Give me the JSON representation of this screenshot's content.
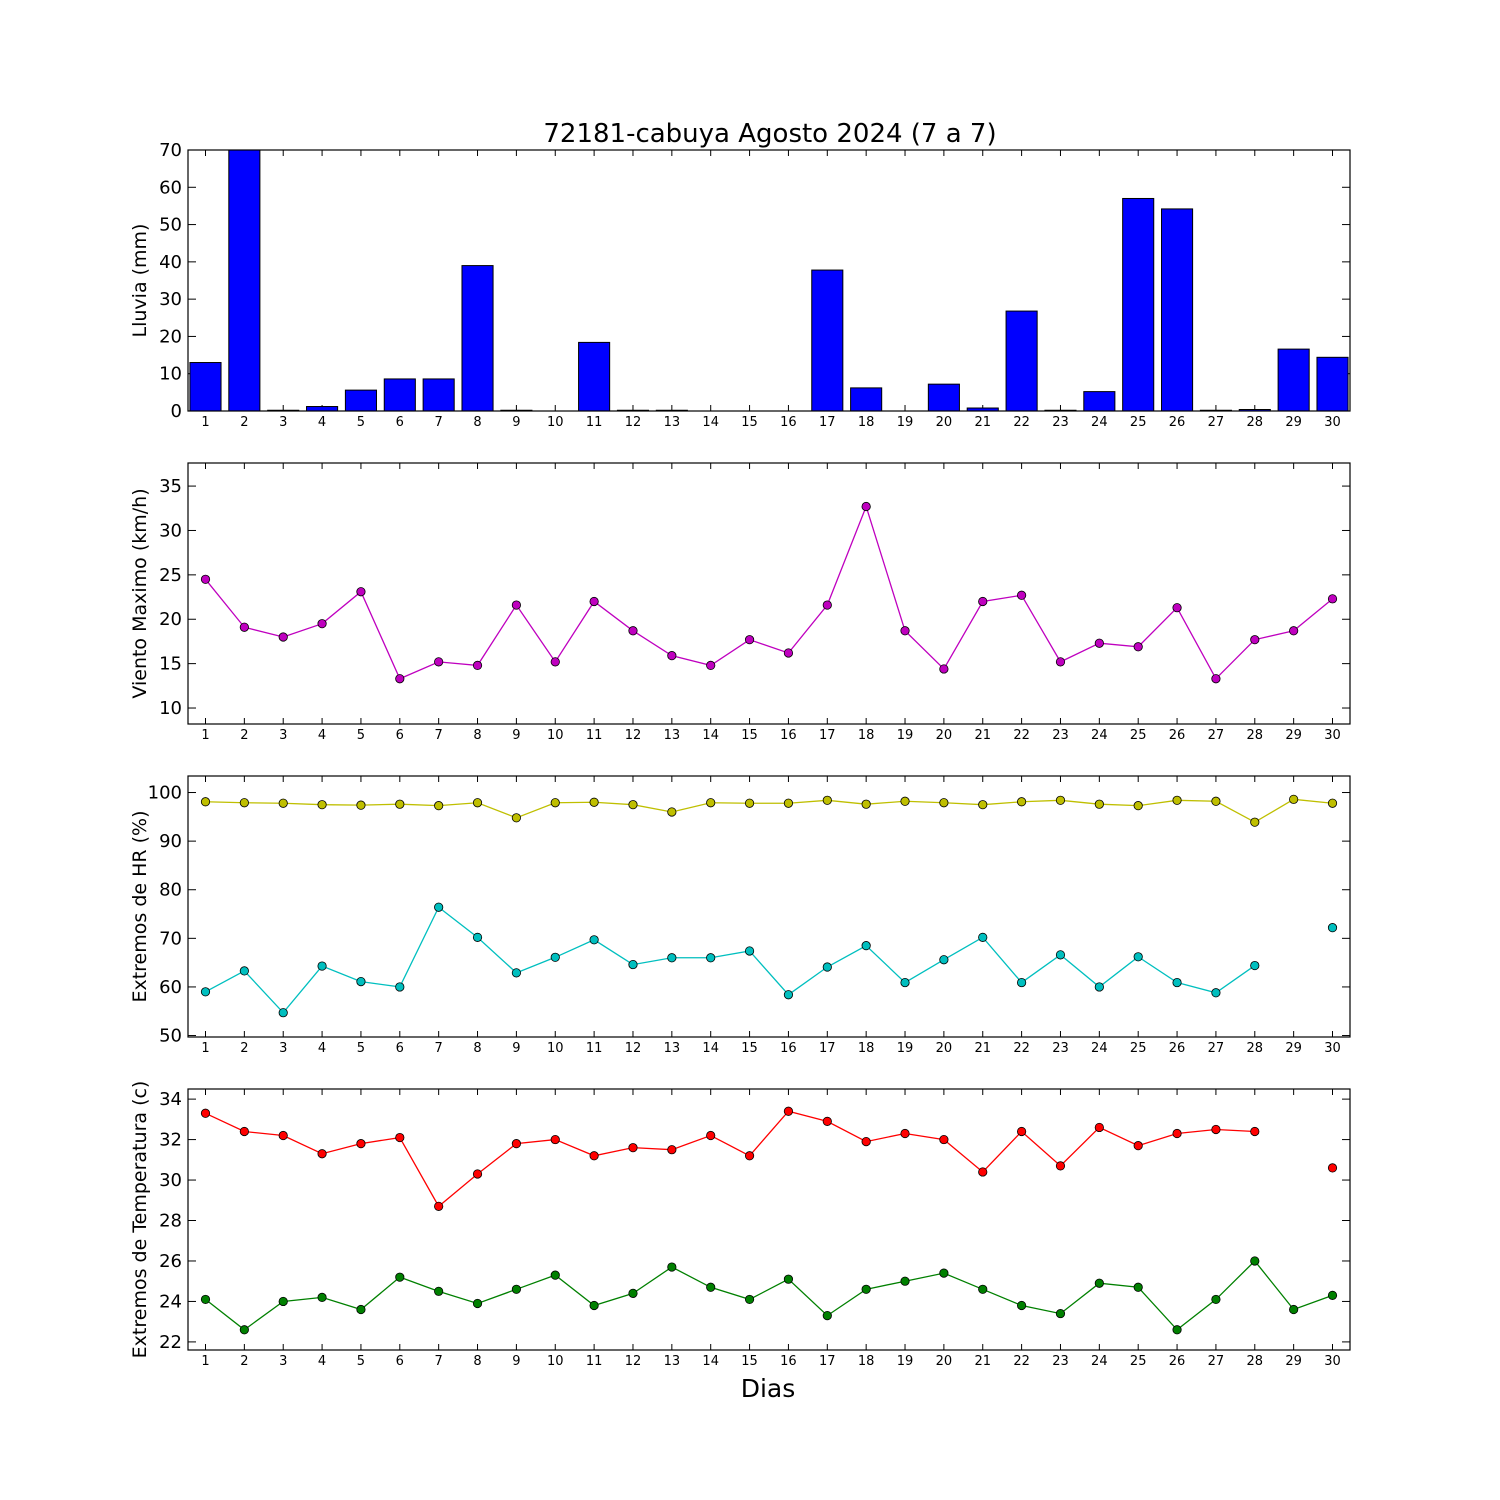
{
  "chart_data": [
    {
      "type": "bar",
      "title": "72181-cabuya Agosto 2024  (7 a 7)",
      "ylabel": "Lluvia (mm)",
      "ylim": [
        0,
        70
      ],
      "yticks": [
        0,
        10,
        20,
        30,
        40,
        50,
        60,
        70
      ],
      "x": [
        1,
        2,
        3,
        4,
        5,
        6,
        7,
        8,
        9,
        10,
        11,
        12,
        13,
        14,
        15,
        16,
        17,
        18,
        19,
        20,
        21,
        22,
        23,
        24,
        25,
        26,
        27,
        28,
        29,
        30
      ],
      "series": [
        {
          "color": "#0000ff",
          "values": [
            13.0,
            70.0,
            0.2,
            1.2,
            5.6,
            8.6,
            8.6,
            39.0,
            0.2,
            0.0,
            18.4,
            0.2,
            0.2,
            0.0,
            0.0,
            0.0,
            37.8,
            6.2,
            0.0,
            7.2,
            0.8,
            26.8,
            0.2,
            5.2,
            57.0,
            54.2,
            0.2,
            0.4,
            16.6,
            14.4
          ]
        }
      ]
    },
    {
      "type": "line",
      "ylabel": "Viento Maximo (km/h)",
      "ylim": [
        8.2,
        37.6
      ],
      "yticks": [
        10,
        15,
        20,
        25,
        30,
        35
      ],
      "x": [
        1,
        2,
        3,
        4,
        5,
        6,
        7,
        8,
        9,
        10,
        11,
        12,
        13,
        14,
        15,
        16,
        17,
        18,
        19,
        20,
        21,
        22,
        23,
        24,
        25,
        26,
        27,
        28,
        29,
        30
      ],
      "series": [
        {
          "color": "#bf00bf",
          "values": [
            24.5,
            19.1,
            18.0,
            19.5,
            23.1,
            13.3,
            15.2,
            14.8,
            21.6,
            15.2,
            22.0,
            18.7,
            15.9,
            14.8,
            17.7,
            16.2,
            21.6,
            32.7,
            18.7,
            14.4,
            22.0,
            22.7,
            15.2,
            17.3,
            16.9,
            21.3,
            13.3,
            17.7,
            18.7,
            22.3
          ]
        }
      ]
    },
    {
      "type": "line",
      "ylabel": "Extremos de HR (%)",
      "ylim": [
        49.7,
        103.4
      ],
      "yticks": [
        50,
        60,
        70,
        80,
        90,
        100
      ],
      "x": [
        1,
        2,
        3,
        4,
        5,
        6,
        7,
        8,
        9,
        10,
        11,
        12,
        13,
        14,
        15,
        16,
        17,
        18,
        19,
        20,
        21,
        22,
        23,
        24,
        25,
        26,
        27,
        28,
        29,
        30
      ],
      "series": [
        {
          "color": "#bfbf00",
          "values": [
            98.1,
            97.9,
            97.8,
            97.5,
            97.4,
            97.6,
            97.3,
            97.9,
            94.8,
            97.9,
            98.0,
            97.5,
            96.0,
            97.9,
            97.8,
            97.8,
            98.4,
            97.6,
            98.2,
            97.9,
            97.5,
            98.1,
            98.4,
            97.6,
            97.3,
            98.4,
            98.2,
            93.9,
            98.6,
            97.8
          ]
        },
        {
          "color": "#00bfbf",
          "values": [
            59.0,
            63.3,
            54.7,
            64.3,
            61.1,
            60.0,
            76.4,
            70.2,
            62.9,
            66.1,
            69.7,
            64.6,
            66.0,
            66.0,
            67.4,
            58.4,
            64.1,
            68.5,
            60.9,
            65.6,
            70.2,
            60.9,
            66.6,
            60.0,
            66.2,
            60.9,
            58.8,
            64.4,
            null,
            72.2
          ]
        }
      ]
    },
    {
      "type": "line",
      "ylabel": "Extremos de Temperatura (c)",
      "xlabel": "Dias",
      "ylim": [
        21.6,
        34.5
      ],
      "yticks": [
        22,
        24,
        26,
        28,
        30,
        32,
        34
      ],
      "x": [
        1,
        2,
        3,
        4,
        5,
        6,
        7,
        8,
        9,
        10,
        11,
        12,
        13,
        14,
        15,
        16,
        17,
        18,
        19,
        20,
        21,
        22,
        23,
        24,
        25,
        26,
        27,
        28,
        29,
        30
      ],
      "series": [
        {
          "color": "#ff0000",
          "values": [
            33.3,
            32.4,
            32.2,
            31.3,
            31.8,
            32.1,
            28.7,
            30.3,
            31.8,
            32.0,
            31.2,
            31.6,
            31.5,
            32.2,
            31.2,
            33.4,
            32.9,
            31.9,
            32.3,
            32.0,
            30.4,
            32.4,
            30.7,
            32.6,
            31.7,
            32.3,
            32.5,
            32.4,
            null,
            30.6
          ]
        },
        {
          "color": "#008000",
          "values": [
            24.1,
            22.6,
            24.0,
            24.2,
            23.6,
            25.2,
            24.5,
            23.9,
            24.6,
            25.3,
            23.8,
            24.4,
            25.7,
            24.7,
            24.1,
            25.1,
            23.3,
            24.6,
            25.0,
            25.4,
            24.6,
            23.8,
            23.4,
            24.9,
            24.7,
            22.6,
            24.1,
            26.0,
            23.6,
            24.3
          ]
        }
      ]
    }
  ]
}
